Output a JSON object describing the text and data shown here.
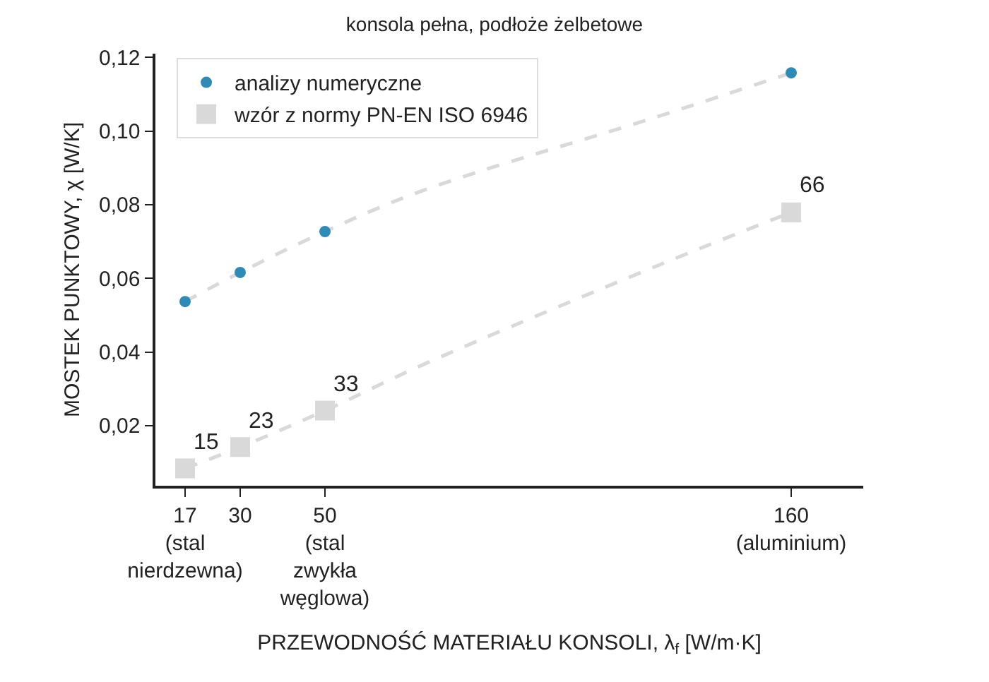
{
  "chart_data": {
    "type": "scatter",
    "title": "konsola pełna, podłoże żelbetowe",
    "xlabel": "PRZEWODNOŚĆ MATERIAŁU KONSOLI, λ$_{f}$ [W/m·K]",
    "ylabel": "MOSTEK PUNKTOWY, χ [W/K]",
    "xlim": [
      10,
      177
    ],
    "xticks": [
      {
        "value": 17,
        "label": "17\n(stal\nnierdzewna)"
      },
      {
        "value": 30,
        "label": "30"
      },
      {
        "value": 50,
        "label": "50\n(stal\nzwykła\nwęglowa)"
      },
      {
        "value": 160,
        "label": "160\n(aluminium)"
      }
    ],
    "ylim": [
      0.0037,
      0.121
    ],
    "yticks": [
      {
        "value": 0.02,
        "label": "0,02"
      },
      {
        "value": 0.04,
        "label": "0,04"
      },
      {
        "value": 0.06,
        "label": "0,06"
      },
      {
        "value": 0.08,
        "label": "0,08"
      },
      {
        "value": 0.1,
        "label": "0,10"
      },
      {
        "value": 0.12,
        "label": "0,12"
      }
    ],
    "legend": "top left",
    "series": [
      {
        "type": "line",
        "color": "#d9d9d9",
        "line_style": "dashed",
        "marker": "none",
        "x": [
          17,
          30,
          50,
          73,
          129,
          160
        ],
        "values": [
          0.0537,
          0.0616,
          0.0727,
          0.0838,
          0.1041,
          0.1158
        ]
      },
      {
        "type": "line",
        "color": "#d9d9d9",
        "line_style": "dashed",
        "marker": "none",
        "x": [
          17,
          30,
          50,
          73,
          129,
          160
        ],
        "values": [
          0.0084,
          0.0142,
          0.0241,
          0.0365,
          0.0637,
          0.0779
        ]
      },
      {
        "name": "analizy numeryczne",
        "color": "#2e8bb8",
        "marker": "circle",
        "x": [
          17,
          30,
          50,
          160
        ],
        "values": [
          0.0537,
          0.0616,
          0.0727,
          0.1158
        ]
      },
      {
        "name": "wzór z normy PN-EN ISO 6946",
        "color": "#d9d9d9",
        "marker": "square",
        "x": [
          17,
          30,
          50,
          160
        ],
        "values": [
          0.0084,
          0.0142,
          0.0241,
          0.0779
        ]
      }
    ],
    "annotations": [
      {
        "text": "15",
        "x": 17,
        "y": 0.0084
      },
      {
        "text": "23",
        "x": 30,
        "y": 0.0142
      },
      {
        "text": "33",
        "x": 50,
        "y": 0.0241
      },
      {
        "text": "66",
        "x": 160,
        "y": 0.0779
      }
    ]
  }
}
